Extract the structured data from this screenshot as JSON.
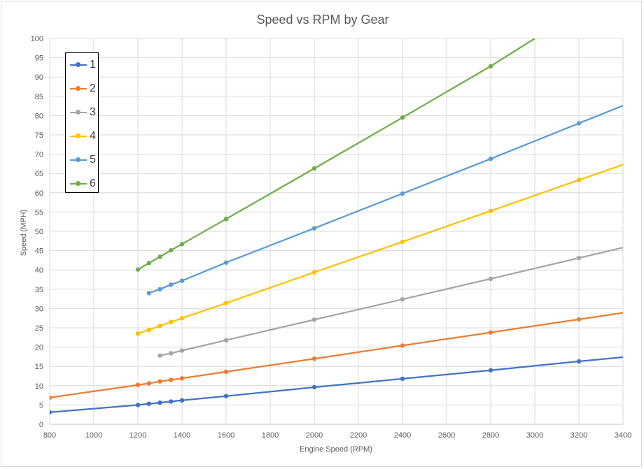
{
  "chart_data": {
    "type": "line",
    "title": "Speed vs RPM by Gear",
    "xlabel": "Engine Speed (RPM)",
    "ylabel": "Speed (MPH)",
    "xlim": [
      800,
      3400
    ],
    "ylim": [
      0,
      100
    ],
    "x_ticks": [
      800,
      1000,
      1200,
      1400,
      1600,
      1800,
      2000,
      2200,
      2400,
      2600,
      2800,
      3000,
      3200,
      3400
    ],
    "y_ticks": [
      0,
      5,
      10,
      15,
      20,
      25,
      30,
      35,
      40,
      45,
      50,
      55,
      60,
      65,
      70,
      75,
      80,
      85,
      90,
      95,
      100
    ],
    "grid": true,
    "legend_position": "top-left",
    "series": [
      {
        "name": "1",
        "color": "#4472C4",
        "points": [
          [
            800,
            3.1
          ],
          [
            1200,
            5.0
          ],
          [
            1250,
            5.3
          ],
          [
            1300,
            5.6
          ],
          [
            1350,
            5.9
          ],
          [
            1400,
            6.2
          ],
          [
            1600,
            7.3
          ],
          [
            2000,
            9.6
          ],
          [
            2400,
            11.8
          ],
          [
            2800,
            14.0
          ],
          [
            3200,
            16.3
          ],
          [
            3400,
            17.4
          ]
        ]
      },
      {
        "name": "2",
        "color": "#ED7D31",
        "points": [
          [
            800,
            6.9
          ],
          [
            1200,
            10.2
          ],
          [
            1250,
            10.6
          ],
          [
            1300,
            11.1
          ],
          [
            1350,
            11.5
          ],
          [
            1400,
            11.9
          ],
          [
            1600,
            13.6
          ],
          [
            2000,
            17.0
          ],
          [
            2400,
            20.4
          ],
          [
            2800,
            23.8
          ],
          [
            3200,
            27.2
          ],
          [
            3400,
            28.9
          ]
        ]
      },
      {
        "name": "3",
        "color": "#A5A5A5",
        "points": [
          [
            1300,
            17.8
          ],
          [
            1350,
            18.4
          ],
          [
            1400,
            19.1
          ],
          [
            1600,
            21.8
          ],
          [
            2000,
            27.1
          ],
          [
            2400,
            32.4
          ],
          [
            2800,
            37.7
          ],
          [
            3200,
            43.1
          ],
          [
            3400,
            45.8
          ]
        ]
      },
      {
        "name": "4",
        "color": "#FFC000",
        "points": [
          [
            1200,
            23.5
          ],
          [
            1250,
            24.5
          ],
          [
            1300,
            25.5
          ],
          [
            1350,
            26.5
          ],
          [
            1400,
            27.5
          ],
          [
            1600,
            31.4
          ],
          [
            2000,
            39.4
          ],
          [
            2400,
            47.3
          ],
          [
            2800,
            55.3
          ],
          [
            3200,
            63.3
          ],
          [
            3400,
            67.3
          ]
        ]
      },
      {
        "name": "5",
        "color": "#5B9BD5",
        "points": [
          [
            1250,
            34.0
          ],
          [
            1300,
            35.0
          ],
          [
            1350,
            36.2
          ],
          [
            1400,
            37.2
          ],
          [
            1600,
            41.9
          ],
          [
            2000,
            50.8
          ],
          [
            2400,
            59.8
          ],
          [
            2800,
            68.8
          ],
          [
            3200,
            78.0
          ],
          [
            3400,
            82.6
          ]
        ]
      },
      {
        "name": "6",
        "color": "#70AD47",
        "points": [
          [
            1200,
            40.1
          ],
          [
            1250,
            41.8
          ],
          [
            1300,
            43.4
          ],
          [
            1350,
            45.1
          ],
          [
            1400,
            46.7
          ],
          [
            1600,
            53.2
          ],
          [
            2000,
            66.3
          ],
          [
            2400,
            79.5
          ],
          [
            2800,
            92.8
          ],
          [
            3000,
            100.0
          ]
        ]
      }
    ]
  }
}
